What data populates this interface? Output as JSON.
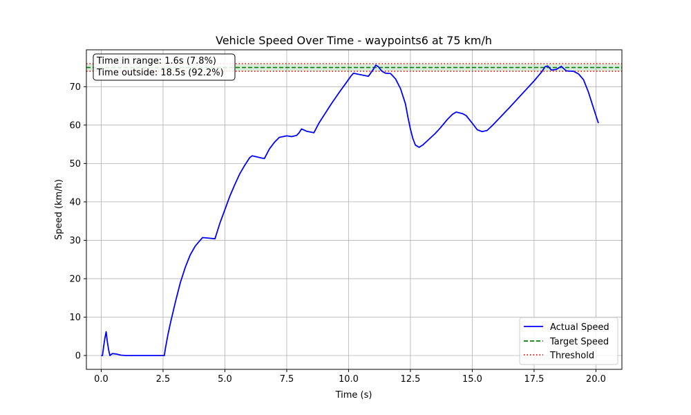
{
  "chart_data": {
    "type": "line",
    "title": "Vehicle Speed Over Time - waypoints6 at 75 km/h",
    "xlabel": "Time (s)",
    "ylabel": "Speed (km/h)",
    "xlim": [
      -0.6,
      21.05
    ],
    "ylim": [
      -3.6,
      79.6
    ],
    "xticks": [
      0.0,
      2.5,
      5.0,
      7.5,
      10.0,
      12.5,
      15.0,
      17.5,
      20.0
    ],
    "xtick_labels": [
      "0.0",
      "2.5",
      "5.0",
      "7.5",
      "10.0",
      "12.5",
      "15.0",
      "17.5",
      "20.0"
    ],
    "yticks": [
      0,
      10,
      20,
      30,
      40,
      50,
      60,
      70
    ],
    "ytick_labels": [
      "0",
      "10",
      "20",
      "30",
      "40",
      "50",
      "60",
      "70"
    ],
    "grid": true,
    "legend_position": "lower-right",
    "target_speed": 75,
    "threshold_low": 74,
    "threshold_high": 76,
    "annotation": {
      "line1": "Time in range: 1.6s (7.8%)",
      "line2": "Time outside: 18.5s (92.2%)"
    },
    "series": [
      {
        "name": "Actual Speed",
        "color": "#0000ff",
        "style": "solid",
        "points": [
          [
            0.0,
            0.0
          ],
          [
            0.05,
            0.0
          ],
          [
            0.1,
            2.5
          ],
          [
            0.15,
            4.5
          ],
          [
            0.2,
            6.2
          ],
          [
            0.25,
            3.5
          ],
          [
            0.3,
            1.5
          ],
          [
            0.35,
            0.0
          ],
          [
            0.45,
            0.5
          ],
          [
            0.6,
            0.4
          ],
          [
            0.8,
            0.1
          ],
          [
            1.0,
            0.0
          ],
          [
            2.0,
            0.0
          ],
          [
            2.5,
            0.0
          ],
          [
            2.55,
            0.0
          ],
          [
            2.6,
            2.0
          ],
          [
            2.7,
            5.5
          ],
          [
            2.8,
            8.5
          ],
          [
            3.0,
            14.0
          ],
          [
            3.2,
            19.0
          ],
          [
            3.4,
            23.0
          ],
          [
            3.6,
            26.2
          ],
          [
            3.8,
            28.5
          ],
          [
            4.0,
            30.0
          ],
          [
            4.1,
            30.7
          ],
          [
            4.3,
            30.6
          ],
          [
            4.6,
            30.4
          ],
          [
            4.8,
            34.5
          ],
          [
            5.0,
            38.0
          ],
          [
            5.2,
            41.5
          ],
          [
            5.4,
            44.5
          ],
          [
            5.6,
            47.3
          ],
          [
            5.8,
            49.5
          ],
          [
            6.0,
            51.5
          ],
          [
            6.1,
            52.0
          ],
          [
            6.3,
            51.7
          ],
          [
            6.5,
            51.4
          ],
          [
            6.6,
            51.3
          ],
          [
            6.8,
            53.8
          ],
          [
            7.0,
            55.5
          ],
          [
            7.2,
            56.8
          ],
          [
            7.5,
            57.2
          ],
          [
            7.7,
            57.0
          ],
          [
            7.9,
            57.3
          ],
          [
            8.0,
            58.0
          ],
          [
            8.1,
            59.0
          ],
          [
            8.3,
            58.4
          ],
          [
            8.6,
            58.0
          ],
          [
            8.8,
            60.5
          ],
          [
            9.0,
            62.5
          ],
          [
            9.3,
            65.5
          ],
          [
            9.6,
            68.3
          ],
          [
            9.9,
            71.0
          ],
          [
            10.1,
            72.8
          ],
          [
            10.2,
            73.5
          ],
          [
            10.5,
            73.1
          ],
          [
            10.8,
            72.7
          ],
          [
            11.0,
            74.5
          ],
          [
            11.1,
            75.6
          ],
          [
            11.2,
            75.2
          ],
          [
            11.35,
            74.0
          ],
          [
            11.5,
            73.5
          ],
          [
            11.7,
            73.4
          ],
          [
            11.9,
            72.0
          ],
          [
            12.1,
            69.5
          ],
          [
            12.3,
            65.5
          ],
          [
            12.4,
            62.0
          ],
          [
            12.5,
            59.0
          ],
          [
            12.6,
            56.5
          ],
          [
            12.7,
            54.8
          ],
          [
            12.85,
            54.2
          ],
          [
            13.0,
            54.8
          ],
          [
            13.2,
            56.0
          ],
          [
            13.5,
            57.8
          ],
          [
            13.7,
            59.2
          ],
          [
            14.0,
            61.5
          ],
          [
            14.2,
            62.8
          ],
          [
            14.35,
            63.4
          ],
          [
            14.6,
            63.0
          ],
          [
            14.75,
            62.5
          ],
          [
            15.0,
            60.5
          ],
          [
            15.2,
            58.8
          ],
          [
            15.4,
            58.3
          ],
          [
            15.6,
            58.6
          ],
          [
            15.8,
            59.8
          ],
          [
            16.1,
            61.8
          ],
          [
            16.5,
            64.5
          ],
          [
            17.0,
            68.0
          ],
          [
            17.5,
            71.5
          ],
          [
            17.8,
            73.8
          ],
          [
            17.95,
            75.2
          ],
          [
            18.05,
            75.4
          ],
          [
            18.2,
            74.3
          ],
          [
            18.4,
            74.5
          ],
          [
            18.6,
            75.3
          ],
          [
            18.8,
            74.1
          ],
          [
            19.1,
            74.0
          ],
          [
            19.3,
            73.3
          ],
          [
            19.5,
            71.8
          ],
          [
            19.7,
            68.5
          ],
          [
            19.85,
            65.5
          ],
          [
            20.0,
            62.5
          ],
          [
            20.1,
            60.5
          ]
        ]
      },
      {
        "name": "Target Speed",
        "color": "#008000",
        "style": "dashed"
      },
      {
        "name": "Threshold",
        "color": "#ff0000",
        "style": "dotted"
      }
    ]
  }
}
